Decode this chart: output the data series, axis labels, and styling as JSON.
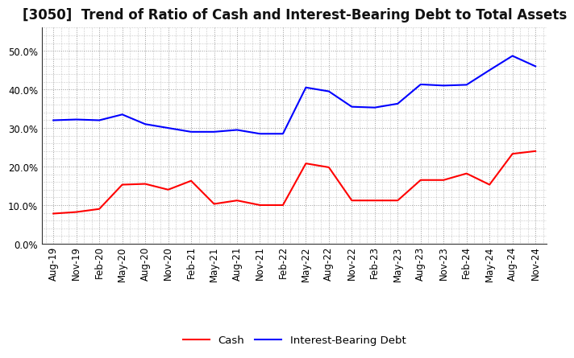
{
  "title": "[3050]  Trend of Ratio of Cash and Interest-Bearing Debt to Total Assets",
  "x_labels": [
    "Aug-19",
    "Nov-19",
    "Feb-20",
    "May-20",
    "Aug-20",
    "Nov-20",
    "Feb-21",
    "May-21",
    "Aug-21",
    "Nov-21",
    "Feb-22",
    "May-22",
    "Aug-22",
    "Nov-22",
    "Feb-23",
    "May-23",
    "Aug-23",
    "Nov-23",
    "Feb-24",
    "May-24",
    "Aug-24",
    "Nov-24"
  ],
  "cash": [
    0.078,
    0.082,
    0.09,
    0.153,
    0.155,
    0.14,
    0.163,
    0.103,
    0.112,
    0.1,
    0.1,
    0.208,
    0.198,
    0.112,
    0.112,
    0.112,
    0.165,
    0.165,
    0.182,
    0.153,
    0.233,
    0.24
  ],
  "debt": [
    0.32,
    0.322,
    0.32,
    0.335,
    0.31,
    0.3,
    0.29,
    0.29,
    0.295,
    0.285,
    0.285,
    0.405,
    0.395,
    0.355,
    0.353,
    0.363,
    0.413,
    0.41,
    0.412,
    0.45,
    0.487,
    0.46
  ],
  "cash_color": "#ff0000",
  "debt_color": "#0000ff",
  "background_color": "#ffffff",
  "plot_bg_color": "#ffffff",
  "grid_color": "#999999",
  "ylim": [
    0.0,
    0.56
  ],
  "yticks": [
    0.0,
    0.1,
    0.2,
    0.3,
    0.4,
    0.5
  ],
  "title_fontsize": 12,
  "tick_fontsize": 8.5,
  "legend_labels": [
    "Cash",
    "Interest-Bearing Debt"
  ],
  "linewidth": 1.5
}
